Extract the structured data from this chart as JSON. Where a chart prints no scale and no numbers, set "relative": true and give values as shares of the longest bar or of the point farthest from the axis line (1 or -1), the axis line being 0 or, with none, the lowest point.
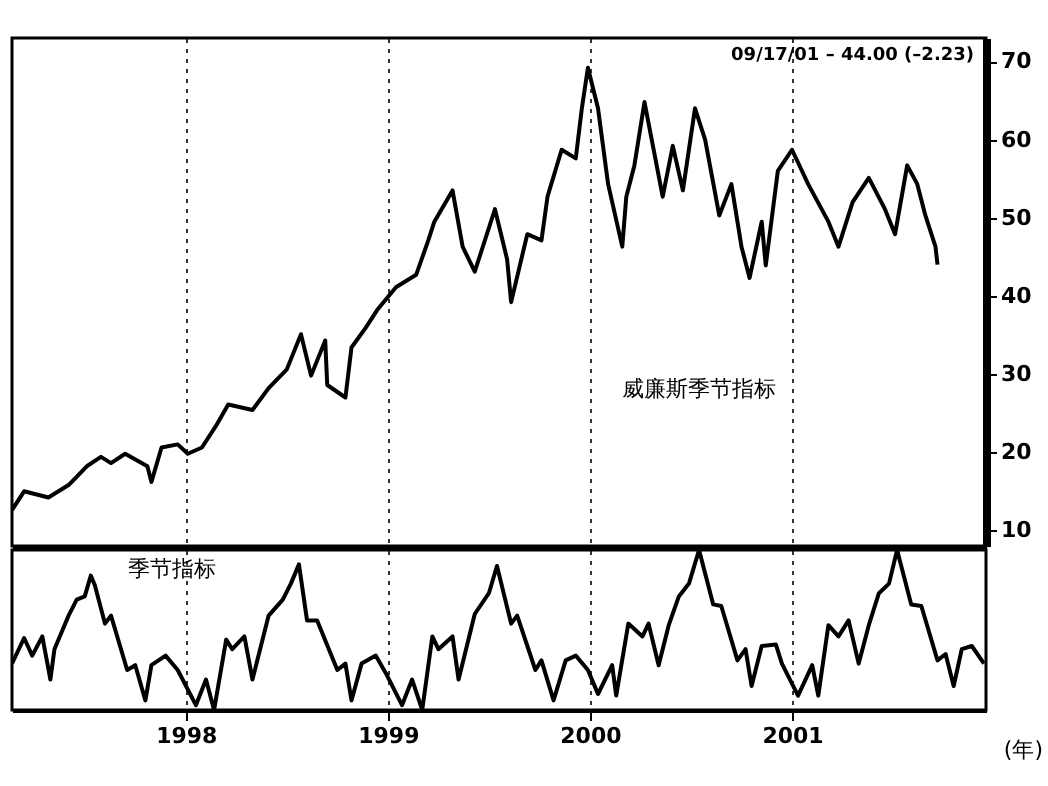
{
  "chart_data": [
    {
      "type": "line",
      "x": [
        1997.14,
        1997.2,
        1997.32,
        1997.42,
        1997.51,
        1997.58,
        1997.63,
        1997.7,
        1997.81,
        1997.83,
        1997.88,
        1997.96,
        1998.01,
        1998.08,
        1998.15,
        1998.21,
        1998.33,
        1998.41,
        1998.5,
        1998.57,
        1998.62,
        1998.69,
        1998.7,
        1998.79,
        1998.82,
        1998.89,
        1998.95,
        1999.04,
        1999.14,
        1999.2,
        1999.23,
        1999.32,
        1999.37,
        1999.43,
        1999.53,
        1999.59,
        1999.61,
        1999.69,
        1999.76,
        1999.79,
        1999.86,
        1999.93,
        1999.96,
        1999.99,
        2000.04,
        2000.09,
        2000.16,
        2000.18,
        2000.22,
        2000.27,
        2000.36,
        2000.41,
        2000.46,
        2000.52,
        2000.57,
        2000.64,
        2000.7,
        2000.75,
        2000.79,
        2000.85,
        2000.87,
        2000.93,
        2001.0,
        2001.08,
        2001.18,
        2001.23,
        2001.3,
        2001.38,
        2001.46,
        2001.51,
        2001.57,
        2001.62,
        2001.66,
        2001.71,
        2001.72
      ],
      "series": [
        {
          "color": "#000000",
          "values": [
            12.6,
            15,
            14.2,
            15.8,
            18.2,
            19.4,
            18.6,
            19.8,
            18.2,
            16.2,
            20.6,
            21,
            19.8,
            20.6,
            23.4,
            26.1,
            25.4,
            28.2,
            30.6,
            35.1,
            29.8,
            34.3,
            28.6,
            27,
            33.4,
            35.9,
            38.3,
            41.1,
            42.7,
            47.1,
            49.5,
            53.5,
            46.3,
            43.1,
            51.1,
            44.7,
            39.2,
            47.9,
            47.1,
            52.7,
            58.7,
            57.6,
            64,
            69.2,
            64,
            54.3,
            46.3,
            52.7,
            56.7,
            64.8,
            52.7,
            59.2,
            53.5,
            64,
            60,
            50.3,
            54.3,
            46.3,
            42.3,
            49.5,
            43.9,
            56,
            58.7,
            54.3,
            49.5,
            46.3,
            52,
            55.1,
            51.1,
            47.9,
            56.7,
            54.3,
            50.3,
            46.3,
            44
          ]
        }
      ],
      "xlim": [
        1997.14,
        2001.96
      ],
      "xticks": [
        1998,
        1999,
        2000,
        2001
      ],
      "ylim": [
        8,
        73
      ],
      "yticks": [
        10,
        20,
        30,
        40,
        50,
        60,
        70
      ],
      "grid": "x",
      "tick_labels": "y",
      "annotations": [
        "09/17/01 – 44.00 (–2.23)",
        "威廉斯季节指标"
      ]
    },
    {
      "type": "line",
      "x": [
        1997.14,
        1997.2,
        1997.24,
        1997.29,
        1997.33,
        1997.35,
        1997.42,
        1997.46,
        1997.5,
        1997.53,
        1997.55,
        1997.6,
        1997.63,
        1997.71,
        1997.75,
        1997.8,
        1997.83,
        1997.9,
        1997.96,
        1998.05,
        1998.1,
        1998.14,
        1998.2,
        1998.23,
        1998.29,
        1998.33,
        1998.41,
        1998.48,
        1998.52,
        1998.56,
        1998.6,
        1998.65,
        1998.75,
        1998.79,
        1998.82,
        1998.87,
        1998.94,
        1998.99,
        1999.07,
        1999.12,
        1999.17,
        1999.22,
        1999.25,
        1999.32,
        1999.35,
        1999.43,
        1999.5,
        1999.54,
        1999.61,
        1999.64,
        1999.73,
        1999.76,
        1999.82,
        1999.88,
        1999.93,
        1999.99,
        2000.04,
        2000.11,
        2000.13,
        2000.19,
        2000.26,
        2000.29,
        2000.34,
        2000.39,
        2000.44,
        2000.49,
        2000.54,
        2000.61,
        2000.65,
        2000.73,
        2000.77,
        2000.8,
        2000.85,
        2000.92,
        2000.95,
        2001.03,
        2001.1,
        2001.13,
        2001.18,
        2001.23,
        2001.28,
        2001.33,
        2001.38,
        2001.43,
        2001.48,
        2001.52,
        2001.59,
        2001.64,
        2001.72,
        2001.76,
        2001.8,
        2001.84,
        2001.89,
        2001.95
      ],
      "series": [
        {
          "name": "季节指标",
          "color": "#000000",
          "values": [
            0.29,
            0.45,
            0.34,
            0.46,
            0.19,
            0.38,
            0.59,
            0.69,
            0.71,
            0.84,
            0.78,
            0.54,
            0.59,
            0.25,
            0.28,
            0.06,
            0.28,
            0.34,
            0.25,
            0.03,
            0.19,
            0,
            0.44,
            0.38,
            0.46,
            0.19,
            0.59,
            0.69,
            0.79,
            0.91,
            0.56,
            0.56,
            0.25,
            0.29,
            0.06,
            0.29,
            0.34,
            0.23,
            0.03,
            0.19,
            0,
            0.46,
            0.38,
            0.46,
            0.19,
            0.6,
            0.73,
            0.9,
            0.54,
            0.59,
            0.25,
            0.31,
            0.06,
            0.31,
            0.34,
            0.25,
            0.1,
            0.28,
            0.09,
            0.54,
            0.46,
            0.54,
            0.28,
            0.53,
            0.71,
            0.79,
            1,
            0.66,
            0.65,
            0.31,
            0.38,
            0.15,
            0.4,
            0.41,
            0.29,
            0.09,
            0.28,
            0.09,
            0.53,
            0.46,
            0.56,
            0.29,
            0.53,
            0.73,
            0.79,
            1,
            0.66,
            0.65,
            0.31,
            0.35,
            0.15,
            0.38,
            0.4,
            0.29
          ]
        }
      ],
      "relative": true,
      "xlim": [
        1997.14,
        2001.96
      ],
      "xticks": [
        1998,
        1999,
        2000,
        2001
      ],
      "xlabel": "(年)",
      "grid": "x",
      "tick_labels": "x"
    }
  ]
}
